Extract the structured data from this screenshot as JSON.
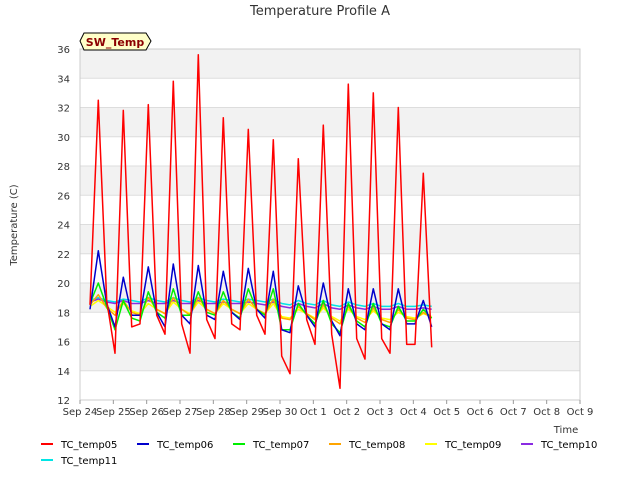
{
  "chart_data": {
    "type": "line",
    "title": "Temperature Profile A",
    "xlabel": "Time",
    "ylabel": "Temperature (C)",
    "badge": "SW_Temp",
    "ylim": [
      12,
      36
    ],
    "xlim": [
      0,
      15
    ],
    "yticks": [
      12,
      14,
      16,
      18,
      20,
      22,
      24,
      26,
      28,
      30,
      32,
      34,
      36
    ],
    "xticks": [
      {
        "x": 0,
        "label": "Sep 24"
      },
      {
        "x": 1,
        "label": "Sep 25"
      },
      {
        "x": 2,
        "label": "Sep 26"
      },
      {
        "x": 3,
        "label": "Sep 27"
      },
      {
        "x": 4,
        "label": "Sep 28"
      },
      {
        "x": 5,
        "label": "Sep 29"
      },
      {
        "x": 6,
        "label": "Sep 30"
      },
      {
        "x": 7,
        "label": "Oct 1"
      },
      {
        "x": 8,
        "label": "Oct 2"
      },
      {
        "x": 9,
        "label": "Oct 3"
      },
      {
        "x": 10,
        "label": "Oct 4"
      },
      {
        "x": 11,
        "label": "Oct 5"
      },
      {
        "x": 12,
        "label": "Oct 6"
      },
      {
        "x": 13,
        "label": "Oct 7"
      },
      {
        "x": 14,
        "label": "Oct 8"
      },
      {
        "x": 15,
        "label": "Oct 9"
      }
    ],
    "grid": true,
    "legend_position": "bottom",
    "x_start": 0.3,
    "x_step": 0.25,
    "series": [
      {
        "name": "TC_temp05",
        "color": "#ff0000",
        "values": [
          18.5,
          32.5,
          18.8,
          15.2,
          31.8,
          17.0,
          17.2,
          32.2,
          17.8,
          16.5,
          33.8,
          17.2,
          15.2,
          35.6,
          17.5,
          16.2,
          31.3,
          17.2,
          16.8,
          30.5,
          17.8,
          16.5,
          29.8,
          15.0,
          13.8,
          28.5,
          17.5,
          15.8,
          30.8,
          16.5,
          12.8,
          33.6,
          16.2,
          14.8,
          33.0,
          16.2,
          15.2,
          32.0,
          15.8,
          15.8,
          27.5,
          15.6
        ]
      },
      {
        "name": "TC_temp06",
        "color": "#0000cc",
        "values": [
          18.2,
          22.2,
          18.6,
          17.0,
          20.4,
          17.8,
          17.8,
          21.1,
          18.0,
          17.0,
          21.3,
          17.8,
          17.2,
          21.2,
          17.8,
          17.5,
          20.8,
          18.0,
          17.5,
          21.0,
          18.2,
          17.6,
          20.8,
          16.8,
          16.6,
          19.8,
          17.8,
          17.0,
          20.0,
          17.4,
          16.4,
          19.6,
          17.2,
          16.8,
          19.6,
          17.2,
          16.8,
          19.6,
          17.2,
          17.2,
          18.8,
          17.0
        ]
      },
      {
        "name": "TC_temp07",
        "color": "#00ee00",
        "values": [
          18.6,
          20.0,
          18.4,
          16.8,
          18.8,
          17.6,
          17.4,
          19.4,
          18.0,
          17.6,
          19.6,
          17.8,
          17.8,
          19.4,
          18.0,
          17.8,
          19.4,
          18.0,
          17.6,
          19.6,
          18.2,
          17.8,
          19.6,
          16.8,
          16.8,
          18.6,
          17.8,
          17.2,
          18.8,
          17.2,
          16.6,
          18.6,
          17.4,
          17.0,
          18.6,
          17.2,
          17.0,
          18.4,
          17.4,
          17.4,
          18.2,
          17.6
        ]
      },
      {
        "name": "TC_temp08",
        "color": "#ffa500",
        "values": [
          18.5,
          19.2,
          18.3,
          17.8,
          18.8,
          18.0,
          17.8,
          19.0,
          18.2,
          17.9,
          19.0,
          18.2,
          17.8,
          19.0,
          18.2,
          17.9,
          18.8,
          18.2,
          17.9,
          18.9,
          18.2,
          17.9,
          18.9,
          17.6,
          17.5,
          18.4,
          17.9,
          17.5,
          18.5,
          17.6,
          17.2,
          18.4,
          17.6,
          17.3,
          18.3,
          17.5,
          17.3,
          18.2,
          17.6,
          17.5,
          18.0,
          17.6
        ]
      },
      {
        "name": "TC_temp09",
        "color": "#ffff00",
        "values": [
          18.4,
          18.8,
          18.4,
          18.0,
          18.6,
          18.1,
          17.9,
          18.6,
          18.2,
          17.9,
          18.7,
          18.2,
          17.9,
          18.7,
          18.2,
          17.9,
          18.6,
          18.2,
          17.9,
          18.6,
          18.2,
          17.9,
          18.6,
          17.7,
          17.6,
          18.2,
          17.9,
          17.6,
          18.3,
          17.7,
          17.4,
          18.2,
          17.7,
          17.5,
          18.1,
          17.6,
          17.5,
          18.0,
          17.7,
          17.6,
          17.9,
          17.7
        ]
      },
      {
        "name": "TC_temp10",
        "color": "#8a2be2",
        "values": [
          18.7,
          18.9,
          18.7,
          18.6,
          18.8,
          18.6,
          18.6,
          18.8,
          18.6,
          18.6,
          18.8,
          18.6,
          18.6,
          18.8,
          18.6,
          18.6,
          18.7,
          18.6,
          18.6,
          18.7,
          18.6,
          18.5,
          18.7,
          18.4,
          18.3,
          18.6,
          18.4,
          18.3,
          18.6,
          18.3,
          18.2,
          18.5,
          18.3,
          18.2,
          18.4,
          18.2,
          18.2,
          18.4,
          18.2,
          18.2,
          18.3,
          18.2
        ]
      },
      {
        "name": "TC_temp11",
        "color": "#00e5e5",
        "values": [
          18.8,
          19.0,
          18.8,
          18.7,
          18.9,
          18.8,
          18.7,
          19.0,
          18.8,
          18.7,
          19.0,
          18.8,
          18.7,
          19.0,
          18.8,
          18.7,
          18.9,
          18.8,
          18.7,
          18.9,
          18.8,
          18.7,
          18.9,
          18.6,
          18.5,
          18.8,
          18.6,
          18.5,
          18.8,
          18.5,
          18.4,
          18.7,
          18.5,
          18.4,
          18.6,
          18.4,
          18.4,
          18.6,
          18.4,
          18.4,
          18.5,
          18.4
        ]
      }
    ]
  }
}
